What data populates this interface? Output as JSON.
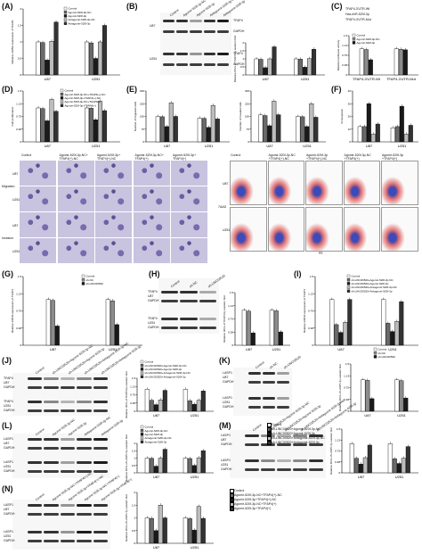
{
  "colors": {
    "black": "#1a1a1a",
    "grey": "#8c8c8c",
    "white": "#ffffff"
  },
  "panels": {
    "A": {
      "label": "(A)",
      "ylabel": "Relative mRNA expression of TFAP4",
      "categories": [
        "U87",
        "U251"
      ],
      "legend": [
        "Control",
        "Agomir-520f-3p-NC",
        "Agomir-520f-3p",
        "Antagomir-520f-3p-NC",
        "Antagomir-520f-3p"
      ]
    },
    "B": {
      "label": "(B)",
      "ylabel": "Relative IDVs of TFAP4 by western blot",
      "categories": [
        "U87",
        "U251"
      ],
      "lanes": [
        "Control",
        "Agomir-520f-3p-NC",
        "Agomir-520f-3p",
        "Antagomir-520f-3p-NC",
        "Antagomir-520f-3p"
      ],
      "blots": [
        "TFAP4",
        "GAPDH",
        "TFAP4",
        "GAPDH"
      ],
      "cells": [
        "U87",
        "U251"
      ]
    },
    "C": {
      "label": "(C)",
      "ylabel": "Relative luciferase activity",
      "categories": [
        "TFAP4-3'UTR-Wt",
        "TFAP4-3'UTR-Mut"
      ],
      "legend": [
        "Control",
        "Agomir-520f-3p-NC",
        "Agomir-520f-3p"
      ],
      "seq": [
        "TFAP4-3'UTR-Wt",
        "Has-miR-520f-3p",
        "TFAP4-3'UTR-Mut"
      ]
    },
    "D": {
      "label": "(D)",
      "ylabel": "Cell proliferation",
      "categories": [
        "U87",
        "U251"
      ],
      "legend": [
        "Control",
        "Agomir-520f-3p-NC+TFAP4(+)-NC",
        "Agomir-520f-3p+TFAP4(+)-NC",
        "Agomir-520f-3p-NC+TFAP4(+)",
        "Agomir-520f-3p+TFAP4(+)"
      ]
    },
    "E": {
      "label": "(E)",
      "ylabel1": "Number of migrated cells",
      "ylabel2": "Number of invaded cells",
      "categories": [
        "U87",
        "U251"
      ]
    },
    "F": {
      "label": "(F)",
      "ylabel": "% Apoptosis",
      "categories": [
        "U87",
        "U251"
      ]
    },
    "micro": {
      "cols": [
        "Control",
        "Agomir-520f-3p-NC+ TFAP4(+)-NC",
        "Agomir-520f-3p+ TFAP4(+)-NC",
        "Agomir-520f-3p-NC+ TFAP4(+)",
        "Agomir-520f-3p+ TFAP4(+)"
      ],
      "rows": [
        "U87",
        "U251",
        "U87",
        "U251"
      ],
      "groups": [
        "Migration",
        "Invasion"
      ]
    },
    "facs": {
      "cols": [
        "Control",
        "Agomir-520f-3p-NC +TFAP4(+)-NC",
        "Agomir-520f-3p +TFAP4(+)-NC",
        "Agomir-520f-3p-NC +TFAP4(+)",
        "Agomir-520f-3p +TFAP4(+)"
      ],
      "rows": [
        "U87",
        "U251"
      ],
      "xlabel": "PE",
      "ylabel": "7AAD"
    },
    "G": {
      "label": "(G)",
      "ylabel": "Relative mRNA expression of TFAP4",
      "categories": [
        "U87",
        "U251"
      ],
      "legend": [
        "Control",
        "sh-NC",
        "sh-LINC00520"
      ]
    },
    "H": {
      "label": "(H)",
      "ylabel": "Relative IDVs of TFAP4 by western blot",
      "lanes": [
        "Control",
        "sh-NC",
        "sh-LINC00520"
      ],
      "blots": [
        "TFAP4",
        "GAPDH",
        "TFAP4",
        "GAPDH"
      ],
      "cells": [
        "U87",
        "U251"
      ],
      "categories": [
        "U87",
        "U251"
      ]
    },
    "I": {
      "label": "(I)",
      "ylabel": "Relative mRNA expression of TFAP4",
      "categories": [
        "U87",
        "U251"
      ],
      "legend": [
        "Control",
        "sh-LINC00520+Agomir-520f-3p-NC",
        "sh-LINC00520+Agomir-520f-3p",
        "sh-LINC00520+Antagomir-520f-3p-NC",
        "sh-LINC00520+Antagomir-520f-3p"
      ]
    },
    "J": {
      "label": "(J)",
      "ylabel": "Relative IDVs of TFAP4 by western blot",
      "categories": [
        "U87",
        "U251"
      ],
      "legend": [
        "Control",
        "sh-LINC00520+Agomir-520f-3p-NC",
        "sh-LINC00520+Agomir-520f-3p",
        "sh-LINC00520+Antagomir-520f-3p-NC",
        "sh-LINC00520+Antagomir-520f-3p"
      ],
      "blots": [
        "TFAP4",
        "GAPDH",
        "TFAP4",
        "GAPDH"
      ],
      "cells": [
        "U87",
        "U251"
      ]
    },
    "K": {
      "label": "(K)",
      "ylabel": "Relative IDVs of LASP1 by western blot",
      "lanes": [
        "Control",
        "sh-NC",
        "sh-LINC00520"
      ],
      "legend": [
        "Control",
        "sh-NC",
        "sh-LINC00520"
      ],
      "blots": [
        "LASP1",
        "GAPDH",
        "LASP1",
        "GAPDH"
      ],
      "cells": [
        "U87",
        "U251"
      ],
      "categories": [
        "U87",
        "U251"
      ]
    },
    "L": {
      "label": "(L)",
      "ylabel": "Relative IDVs of LASP1 by western blot",
      "lanes": [
        "Control",
        "Agomir-520f-3p-NC",
        "Agomir-520f-3p",
        "Antagomir-520f-3p-NC",
        "Antagomir-520f-3p"
      ],
      "legend": [
        "Control",
        "Agomir-520f-3p-NC",
        "Agomir-520f-3p",
        "Antagomir-520f-3p-NC",
        "Antagomir-520f-3p"
      ],
      "blots": [
        "LASP1",
        "GAPDH",
        "LASP1",
        "GAPDH"
      ],
      "cells": [
        "U87",
        "U251"
      ],
      "categories": [
        "U87",
        "U251"
      ]
    },
    "M": {
      "label": "(M)",
      "ylabel": "Relative IDVs of LASP1 by western blot",
      "categories": [
        "U87",
        "U251"
      ],
      "legend": [
        "Control",
        "sh-LINC00520+Agomir-520f-3p-NC",
        "sh-LINC00520+Agomir-520f-3p",
        "sh-LINC00520+Antagomir-520f-3p-NC",
        "sh-LINC00520+Antagomir-520f-3p"
      ],
      "blots": [
        "LASP1",
        "GAPDH",
        "LASP1",
        "GAPDH"
      ],
      "cells": [
        "U87",
        "U251"
      ]
    },
    "N": {
      "label": "(N)",
      "ylabel": "Relative IDVs of LASP1 by western blot",
      "categories": [
        "U87",
        "U251"
      ],
      "legend": [
        "Control",
        "Agomir-520f-3p-NC+TFAP4(+)-NC",
        "Agomir-520f-3p+TFAP4(+)-NC",
        "Agomir-520f-3p-NC+TFAP4(+)",
        "Agomir-520f-3p+TFAP4(+)"
      ],
      "blots": [
        "LASP1",
        "GAPDH",
        "LASP1",
        "GAPDH"
      ],
      "cells": [
        "U87",
        "U251"
      ]
    }
  },
  "chart_data": [
    {
      "id": "A",
      "type": "bar",
      "categories": [
        "U87",
        "U251"
      ],
      "ylim": [
        0,
        2.0
      ],
      "series": [
        {
          "name": "Control",
          "values": [
            1.0,
            1.0
          ]
        },
        {
          "name": "Agomir-520f-3p-NC",
          "values": [
            0.98,
            0.97
          ]
        },
        {
          "name": "Agomir-520f-3p",
          "values": [
            0.45,
            0.5
          ]
        },
        {
          "name": "Antagomir-520f-3p-NC",
          "values": [
            1.02,
            1.0
          ]
        },
        {
          "name": "Antagomir-520f-3p",
          "values": [
            1.6,
            1.5
          ]
        }
      ]
    },
    {
      "id": "B",
      "type": "bar",
      "categories": [
        "U87",
        "U251"
      ],
      "ylim": [
        0,
        2.0
      ],
      "series": [
        {
          "name": "Control",
          "values": [
            1.0,
            1.0
          ]
        },
        {
          "name": "Agomir-520f-3p-NC",
          "values": [
            0.97,
            0.98
          ]
        },
        {
          "name": "Agomir-520f-3p",
          "values": [
            0.45,
            0.48
          ]
        },
        {
          "name": "Antagomir-520f-3p-NC",
          "values": [
            1.0,
            1.02
          ]
        },
        {
          "name": "Antagomir-520f-3p",
          "values": [
            1.75,
            1.6
          ]
        }
      ]
    },
    {
      "id": "C",
      "type": "bar",
      "categories": [
        "TFAP4-3'UTR-Wt",
        "TFAP4-3'UTR-Mut"
      ],
      "ylim": [
        0,
        1.5
      ],
      "series": [
        {
          "name": "Control",
          "values": [
            1.0,
            1.0
          ]
        },
        {
          "name": "Agomir-520f-3p-NC",
          "values": [
            0.97,
            0.98
          ]
        },
        {
          "name": "Agomir-520f-3p",
          "values": [
            0.58,
            0.96
          ]
        }
      ]
    },
    {
      "id": "D",
      "type": "bar",
      "categories": [
        "U87",
        "U251"
      ],
      "ylim": [
        0,
        1.5
      ],
      "series": [
        {
          "name": "Control",
          "values": [
            1.0,
            1.0
          ]
        },
        {
          "name": "Agomir-520f-3p-NC+TFAP4(+)-NC",
          "values": [
            0.98,
            0.99
          ]
        },
        {
          "name": "Agomir-520f-3p+TFAP4(+)-NC",
          "values": [
            0.62,
            0.65
          ]
        },
        {
          "name": "Agomir-520f-3p-NC+TFAP4(+)",
          "values": [
            1.25,
            1.2
          ]
        },
        {
          "name": "Agomir-520f-3p+TFAP4(+)",
          "values": [
            0.9,
            0.92
          ]
        }
      ]
    },
    {
      "id": "E1",
      "type": "bar",
      "categories": [
        "U87",
        "U251"
      ],
      "ylim": [
        0,
        300
      ],
      "series": [
        {
          "name": "Control",
          "values": [
            150,
            140
          ]
        },
        {
          "name": "Agomir-520f-3p-NC+TFAP4(+)-NC",
          "values": [
            148,
            138
          ]
        },
        {
          "name": "Agomir-520f-3p+TFAP4(+)-NC",
          "values": [
            90,
            85
          ]
        },
        {
          "name": "Agomir-520f-3p-NC+TFAP4(+)",
          "values": [
            230,
            215
          ]
        },
        {
          "name": "Agomir-520f-3p+TFAP4(+)",
          "values": [
            150,
            135
          ]
        }
      ]
    },
    {
      "id": "E2",
      "type": "bar",
      "categories": [
        "U87",
        "U251"
      ],
      "ylim": [
        0,
        300
      ],
      "series": [
        {
          "name": "Control",
          "values": [
            160,
            150
          ]
        },
        {
          "name": "Agomir-520f-3p-NC+TFAP4(+)-NC",
          "values": [
            155,
            148
          ]
        },
        {
          "name": "Agomir-520f-3p+TFAP4(+)-NC",
          "values": [
            95,
            90
          ]
        },
        {
          "name": "Agomir-520f-3p-NC+TFAP4(+)",
          "values": [
            240,
            225
          ]
        },
        {
          "name": "Agomir-520f-3p+TFAP4(+)",
          "values": [
            160,
            145
          ]
        }
      ]
    },
    {
      "id": "F",
      "type": "bar",
      "categories": [
        "U87",
        "U251"
      ],
      "ylim": [
        0,
        40
      ],
      "series": [
        {
          "name": "Control",
          "values": [
            12,
            11
          ]
        },
        {
          "name": "Agomir-520f-3p-NC+TFAP4(+)-NC",
          "values": [
            12,
            12
          ]
        },
        {
          "name": "Agomir-520f-3p+TFAP4(+)-NC",
          "values": [
            30,
            28
          ]
        },
        {
          "name": "Agomir-520f-3p-NC+TFAP4(+)",
          "values": [
            6,
            6
          ]
        },
        {
          "name": "Agomir-520f-3p+TFAP4(+)",
          "values": [
            14,
            13
          ]
        }
      ]
    },
    {
      "id": "G",
      "type": "bar",
      "categories": [
        "U87",
        "U251"
      ],
      "ylim": [
        0,
        1.5
      ],
      "series": [
        {
          "name": "Control",
          "values": [
            1.0,
            1.0
          ]
        },
        {
          "name": "sh-NC",
          "values": [
            0.98,
            0.97
          ]
        },
        {
          "name": "sh-LINC00520",
          "values": [
            0.42,
            0.45
          ]
        }
      ]
    },
    {
      "id": "H",
      "type": "bar",
      "categories": [
        "U87",
        "U251"
      ],
      "ylim": [
        0,
        1.5
      ],
      "series": [
        {
          "name": "Control",
          "values": [
            1.0,
            1.0
          ]
        },
        {
          "name": "sh-NC",
          "values": [
            0.97,
            0.98
          ]
        },
        {
          "name": "sh-LINC00520",
          "values": [
            0.35,
            0.38
          ]
        }
      ]
    },
    {
      "id": "I",
      "type": "bar",
      "categories": [
        "U87",
        "U251"
      ],
      "ylim": [
        0,
        1.5
      ],
      "series": [
        {
          "name": "Control",
          "values": [
            1.0,
            1.0
          ]
        },
        {
          "name": "sh-LINC00520+Agomir-520f-3p-NC",
          "values": [
            0.45,
            0.48
          ]
        },
        {
          "name": "sh-LINC00520+Agomir-520f-3p",
          "values": [
            0.28,
            0.3
          ]
        },
        {
          "name": "sh-LINC00520+Antagomir-520f-3p-NC",
          "values": [
            0.5,
            0.52
          ]
        },
        {
          "name": "sh-LINC00520+Antagomir-520f-3p",
          "values": [
            1.0,
            0.95
          ]
        }
      ]
    },
    {
      "id": "J",
      "type": "bar",
      "categories": [
        "U87",
        "U251"
      ],
      "ylim": [
        0,
        1.5
      ],
      "series": [
        {
          "name": "Control",
          "values": [
            1.0,
            1.0
          ]
        },
        {
          "name": "sh-LINC00520+Agomir-520f-3p-NC",
          "values": [
            0.5,
            0.48
          ]
        },
        {
          "name": "sh-LINC00520+Agomir-520f-3p",
          "values": [
            0.3,
            0.32
          ]
        },
        {
          "name": "sh-LINC00520+Antagomir-520f-3p-NC",
          "values": [
            0.52,
            0.5
          ]
        },
        {
          "name": "sh-LINC00520+Antagomir-520f-3p",
          "values": [
            0.95,
            0.92
          ]
        }
      ]
    },
    {
      "id": "K",
      "type": "bar",
      "categories": [
        "U87",
        "U251"
      ],
      "ylim": [
        0,
        1.5
      ],
      "series": [
        {
          "name": "Control",
          "values": [
            1.0,
            1.0
          ]
        },
        {
          "name": "sh-NC",
          "values": [
            0.98,
            0.97
          ]
        },
        {
          "name": "sh-LINC00520",
          "values": [
            0.4,
            0.42
          ]
        }
      ]
    },
    {
      "id": "L",
      "type": "bar",
      "categories": [
        "U87",
        "U251"
      ],
      "ylim": [
        0,
        2.0
      ],
      "series": [
        {
          "name": "Control",
          "values": [
            1.0,
            1.0
          ]
        },
        {
          "name": "Agomir-520f-3p-NC",
          "values": [
            0.98,
            0.97
          ]
        },
        {
          "name": "Agomir-520f-3p",
          "values": [
            0.45,
            0.5
          ]
        },
        {
          "name": "Antagomir-520f-3p-NC",
          "values": [
            1.0,
            1.02
          ]
        },
        {
          "name": "Antagomir-520f-3p",
          "values": [
            1.6,
            1.5
          ]
        }
      ]
    },
    {
      "id": "M",
      "type": "bar",
      "categories": [
        "U87",
        "U251"
      ],
      "ylim": [
        0,
        1.5
      ],
      "series": [
        {
          "name": "Control",
          "values": [
            1.0,
            1.0
          ]
        },
        {
          "name": "sh-LINC00520+Agomir-520f-3p-NC",
          "values": [
            0.5,
            0.48
          ]
        },
        {
          "name": "sh-LINC00520+Agomir-520f-3p",
          "values": [
            0.3,
            0.32
          ]
        },
        {
          "name": "sh-LINC00520+Antagomir-520f-3p-NC",
          "values": [
            0.52,
            0.5
          ]
        },
        {
          "name": "sh-LINC00520+Antagomir-520f-3p",
          "values": [
            0.95,
            0.9
          ]
        }
      ]
    },
    {
      "id": "N",
      "type": "bar",
      "categories": [
        "U87",
        "U251"
      ],
      "ylim": [
        0,
        2.0
      ],
      "series": [
        {
          "name": "Control",
          "values": [
            1.0,
            1.0
          ]
        },
        {
          "name": "Agomir-520f-3p-NC+TFAP4(+)-NC",
          "values": [
            0.98,
            0.97
          ]
        },
        {
          "name": "Agomir-520f-3p+TFAP4(+)-NC",
          "values": [
            0.5,
            0.52
          ]
        },
        {
          "name": "Agomir-520f-3p-NC+TFAP4(+)",
          "values": [
            1.5,
            1.45
          ]
        },
        {
          "name": "Agomir-520f-3p+TFAP4(+)",
          "values": [
            1.0,
            0.98
          ]
        }
      ]
    }
  ]
}
